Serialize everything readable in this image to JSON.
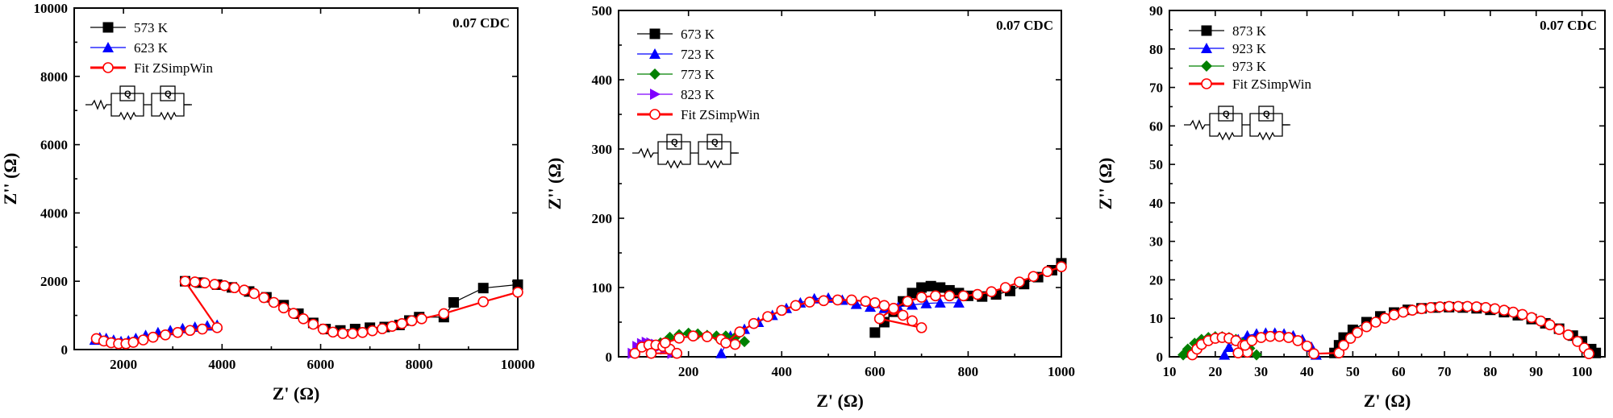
{
  "colors": {
    "black": "#000000",
    "blue": "#0000ff",
    "green": "#008000",
    "purple": "#7f00ff",
    "red": "#ff0000",
    "fit_marker_fill": "#ffffff"
  },
  "chart_data": [
    {
      "type": "scatter",
      "annotation": "0.07 CDC",
      "xlabel": "Z' (Ω)",
      "ylabel": "Z'' (Ω)",
      "xlim": [
        1000,
        10000
      ],
      "ylim": [
        0,
        10000
      ],
      "xticks": [
        2000,
        4000,
        6000,
        8000,
        10000
      ],
      "yticks": [
        0,
        2000,
        4000,
        6000,
        8000,
        10000
      ],
      "legend_placement": "top-left",
      "circuit_icon": "R(QR)(QR) equivalent circuit",
      "series": [
        {
          "name": "573 K",
          "color": "#000000",
          "marker": "square",
          "line": true,
          "x": [
            3250,
            3550,
            3900,
            4200,
            4550,
            4900,
            5250,
            5550,
            5850,
            6100,
            6400,
            6700,
            7000,
            7300,
            7600,
            7800,
            8000,
            8500,
            8700,
            9300,
            10000
          ],
          "y": [
            2000,
            1960,
            1900,
            1820,
            1700,
            1530,
            1300,
            1050,
            780,
            600,
            560,
            600,
            640,
            660,
            720,
            850,
            950,
            950,
            1380,
            1800,
            1900
          ]
        },
        {
          "name": "623 K",
          "color": "#0000ff",
          "marker": "triangle-up",
          "line": false,
          "x": [
            1420,
            1520,
            1650,
            1800,
            1950,
            2100,
            2250,
            2450,
            2700,
            2950,
            3200,
            3450,
            3700,
            3900
          ],
          "y": [
            280,
            350,
            330,
            280,
            240,
            260,
            330,
            420,
            500,
            560,
            620,
            660,
            700,
            720
          ]
        },
        {
          "name": "Fit ZSimpWin",
          "color": "#ff0000",
          "marker": "open-circle",
          "line": true,
          "x": [
            1450,
            1600,
            1750,
            1900,
            2050,
            2200,
            2400,
            2600,
            2850,
            3100,
            3350,
            3600,
            3900,
            3250,
            3450,
            3650,
            3850,
            4050,
            4250,
            4450,
            4650,
            4850,
            5050,
            5250,
            5450,
            5650,
            5850,
            6050,
            6250,
            6450,
            6650,
            6850,
            7050,
            7250,
            7450,
            7650,
            7850,
            8050,
            8500,
            9300,
            10000
          ],
          "y": [
            320,
            250,
            200,
            170,
            170,
            210,
            280,
            360,
            430,
            500,
            560,
            600,
            640,
            2000,
            1980,
            1950,
            1910,
            1870,
            1810,
            1740,
            1640,
            1520,
            1380,
            1220,
            1060,
            900,
            740,
            600,
            510,
            470,
            470,
            500,
            550,
            610,
            680,
            760,
            840,
            900,
            1050,
            1400,
            1680
          ]
        }
      ]
    },
    {
      "type": "scatter",
      "annotation": "0.07 CDC",
      "xlabel": "Z' (Ω)",
      "ylabel": "Z'' (Ω)",
      "xlim": [
        50,
        1000
      ],
      "ylim": [
        0,
        500
      ],
      "xticks": [
        200,
        400,
        600,
        800,
        1000
      ],
      "yticks": [
        0,
        100,
        200,
        300,
        400,
        500
      ],
      "legend_placement": "top-left",
      "circuit_icon": "R(QR)(QR) equivalent circuit",
      "series": [
        {
          "name": "673 K",
          "color": "#000000",
          "marker": "square",
          "line": true,
          "x": [
            600,
            620,
            640,
            660,
            680,
            700,
            720,
            740,
            760,
            780,
            800,
            830,
            860,
            890,
            920,
            950,
            980,
            1000
          ],
          "y": [
            35,
            50,
            65,
            80,
            92,
            100,
            102,
            100,
            96,
            92,
            88,
            87,
            90,
            95,
            105,
            115,
            125,
            135
          ]
        },
        {
          "name": "723 K",
          "color": "#0000ff",
          "marker": "triangle-up",
          "line": true,
          "x": [
            270,
            290,
            320,
            350,
            380,
            410,
            440,
            470,
            500,
            530,
            560,
            590,
            620,
            650,
            680,
            710,
            740,
            780
          ],
          "y": [
            5,
            30,
            40,
            50,
            60,
            70,
            78,
            84,
            85,
            82,
            76,
            72,
            70,
            72,
            75,
            77,
            78,
            78
          ]
        },
        {
          "name": "773 K",
          "color": "#008000",
          "marker": "diamond",
          "line": false,
          "x": [
            120,
            140,
            160,
            180,
            200,
            220,
            240,
            260,
            280,
            300,
            320
          ],
          "y": [
            5,
            20,
            28,
            32,
            34,
            33,
            31,
            30,
            30,
            28,
            22
          ]
        },
        {
          "name": "823 K",
          "color": "#7f00ff",
          "marker": "triangle-right",
          "line": false,
          "x": [
            80,
            90,
            100,
            110,
            120,
            130,
            140,
            150,
            165
          ],
          "y": [
            5,
            15,
            19,
            21,
            20,
            18,
            15,
            11,
            5
          ]
        },
        {
          "name": "Fit ZSimpWin",
          "color": "#ff0000",
          "marker": "open-circle",
          "line": true,
          "x": [
            85,
            100,
            115,
            130,
            145,
            160,
            175,
            120,
            150,
            180,
            210,
            240,
            270,
            300,
            280,
            310,
            340,
            370,
            400,
            430,
            460,
            490,
            520,
            550,
            580,
            600,
            620,
            640,
            660,
            680,
            700,
            610,
            640,
            670,
            700,
            730,
            760,
            790,
            820,
            850,
            880,
            910,
            940,
            970,
            1000
          ],
          "y": [
            5,
            14,
            17,
            17,
            15,
            11,
            5,
            5,
            20,
            27,
            30,
            29,
            25,
            18,
            20,
            36,
            48,
            58,
            67,
            74,
            79,
            81,
            82,
            82,
            80,
            78,
            74,
            68,
            60,
            52,
            42,
            55,
            70,
            80,
            86,
            88,
            88,
            88,
            90,
            94,
            100,
            108,
            116,
            123,
            130
          ]
        }
      ]
    },
    {
      "type": "scatter",
      "annotation": "0.07 CDC",
      "xlabel": "Z' (Ω)",
      "ylabel": "Z'' (Ω)",
      "xlim": [
        10,
        105
      ],
      "ylim": [
        0,
        90
      ],
      "xticks": [
        10,
        20,
        30,
        40,
        50,
        60,
        70,
        80,
        90,
        100
      ],
      "yticks": [
        0,
        10,
        20,
        30,
        40,
        50,
        60,
        70,
        80,
        90
      ],
      "legend_placement": "top-left",
      "circuit_icon": "R(QR)(QR) equivalent circuit",
      "series": [
        {
          "name": "873 K",
          "color": "#000000",
          "marker": "square",
          "line": true,
          "x": [
            46,
            47,
            48,
            50,
            53,
            56,
            59,
            62,
            65,
            68,
            71,
            74,
            77,
            80,
            83,
            86,
            89,
            92,
            95,
            98,
            100,
            102,
            103
          ],
          "y": [
            1,
            3,
            5,
            7,
            9,
            10.5,
            11.5,
            12.2,
            12.6,
            12.8,
            12.9,
            12.8,
            12.6,
            12.2,
            11.6,
            10.8,
            9.8,
            8.7,
            7.3,
            5.5,
            4,
            2,
            1
          ]
        },
        {
          "name": "923 K",
          "color": "#0000ff",
          "marker": "triangle-up",
          "line": true,
          "x": [
            22,
            23,
            25,
            27,
            29,
            31,
            33,
            35,
            37,
            39,
            41,
            42
          ],
          "y": [
            0.5,
            2.5,
            4.5,
            5.5,
            6,
            6.2,
            6.2,
            6,
            5.5,
            4.5,
            2.5,
            0.5
          ]
        },
        {
          "name": "973 K",
          "color": "#008000",
          "marker": "diamond",
          "line": false,
          "x": [
            13,
            14,
            15.5,
            17,
            18.5,
            20,
            21.5,
            23,
            24.5,
            26,
            27.5,
            29
          ],
          "y": [
            0.5,
            2,
            3.5,
            4.5,
            5,
            5.2,
            5.2,
            5,
            4.5,
            3.5,
            2.2,
            0.5
          ]
        },
        {
          "name": "Fit ZSimpWin",
          "color": "#ff0000",
          "marker": "open-circle",
          "line": true,
          "x": [
            15,
            16,
            17,
            18.5,
            20,
            21.5,
            23,
            24.5,
            26,
            27,
            25,
            26.5,
            28,
            30,
            32,
            34,
            36,
            38,
            40,
            41.5,
            47,
            48,
            49.5,
            51,
            53,
            55,
            57,
            59,
            61,
            63,
            65,
            67,
            69,
            71,
            73,
            75,
            77,
            79,
            81,
            83,
            85,
            87,
            89,
            91,
            93,
            95,
            97,
            99,
            100.5,
            101.5
          ],
          "y": [
            0.5,
            2,
            3.2,
            4.2,
            4.8,
            5,
            4.8,
            4.2,
            3,
            1.2,
            1,
            3,
            4.2,
            5,
            5.3,
            5.3,
            5,
            4.2,
            2.8,
            0.8,
            1,
            3,
            4.8,
            6.3,
            7.8,
            9,
            10,
            10.9,
            11.6,
            12.1,
            12.5,
            12.8,
            13,
            13.1,
            13.1,
            13.1,
            13,
            12.8,
            12.5,
            12.1,
            11.6,
            11,
            10.2,
            9.3,
            8.3,
            7.1,
            5.7,
            4,
            2.3,
            0.8
          ]
        }
      ]
    }
  ]
}
